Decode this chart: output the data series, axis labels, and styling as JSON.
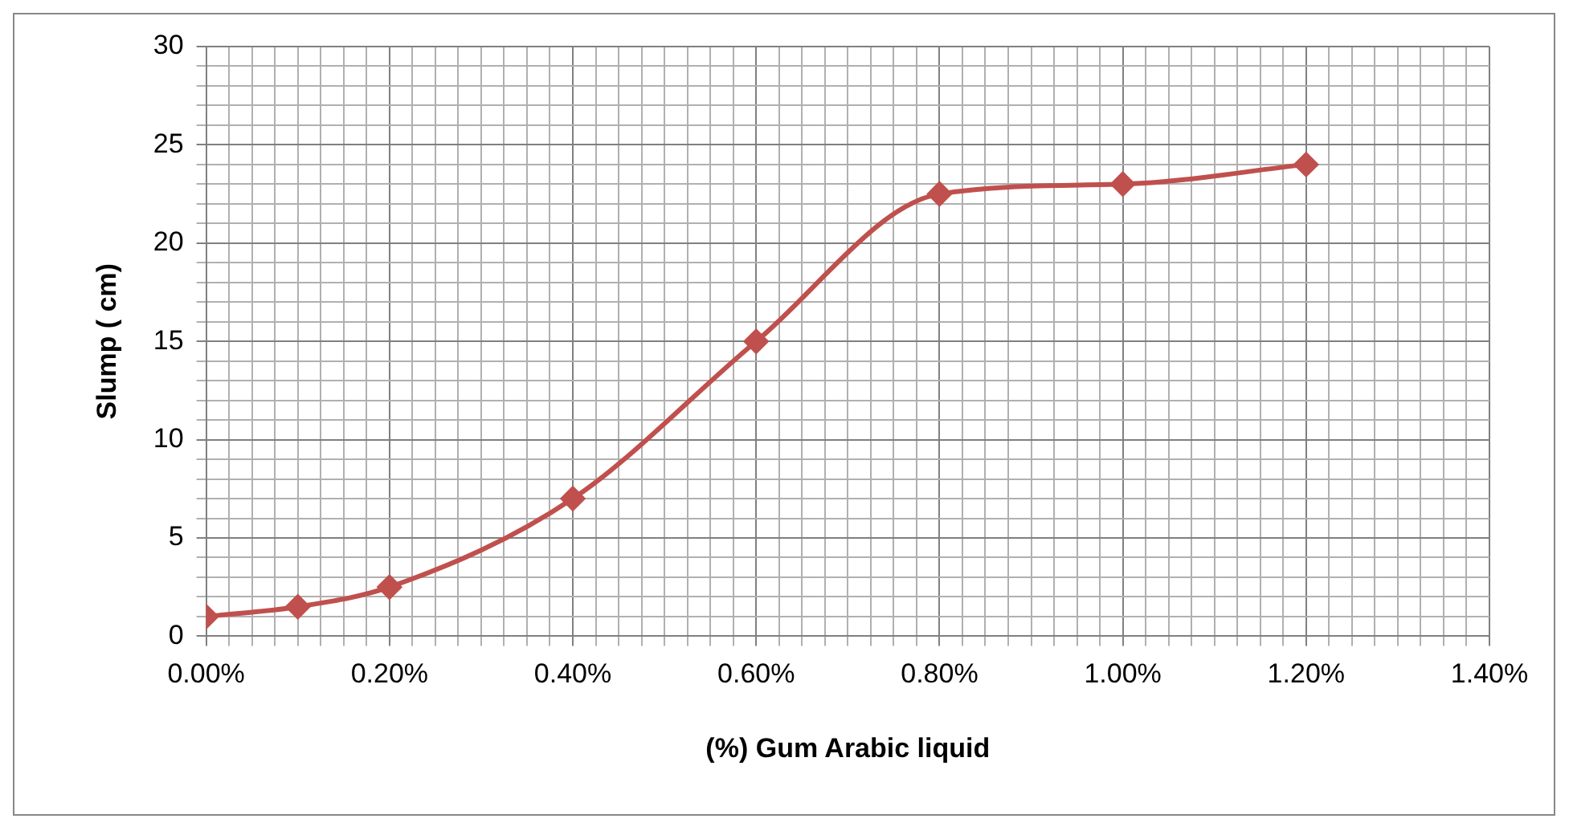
{
  "chart_data": {
    "type": "line",
    "xlabel": "(%) Gum Arabic liquid",
    "ylabel": "Slump ( cm)",
    "x": [
      0,
      0.1,
      0.2,
      0.4,
      0.6,
      0.8,
      1.0,
      1.2
    ],
    "series": [
      {
        "color": "#c0504d",
        "values": [
          1,
          1.5,
          2.5,
          7,
          15,
          22.5,
          23,
          24
        ]
      }
    ],
    "xlim": [
      0,
      1.4
    ],
    "ylim": [
      0,
      30
    ],
    "xticks": [
      {
        "value": 0,
        "label": "0.00%"
      },
      {
        "value": 0.025,
        "label": null
      },
      {
        "value": 0.05,
        "label": null
      },
      {
        "value": 0.075,
        "label": null
      },
      {
        "value": 0.1,
        "label": null
      },
      {
        "value": 0.125,
        "label": null
      },
      {
        "value": 0.15,
        "label": null
      },
      {
        "value": 0.175,
        "label": null
      },
      {
        "value": 0.2,
        "label": "0.20%"
      },
      {
        "value": 0.225,
        "label": null
      },
      {
        "value": 0.25,
        "label": null
      },
      {
        "value": 0.275,
        "label": null
      },
      {
        "value": 0.3,
        "label": null
      },
      {
        "value": 0.325,
        "label": null
      },
      {
        "value": 0.35,
        "label": null
      },
      {
        "value": 0.375,
        "label": null
      },
      {
        "value": 0.4,
        "label": "0.40%"
      },
      {
        "value": 0.425,
        "label": null
      },
      {
        "value": 0.45,
        "label": null
      },
      {
        "value": 0.475,
        "label": null
      },
      {
        "value": 0.5,
        "label": null
      },
      {
        "value": 0.525,
        "label": null
      },
      {
        "value": 0.55,
        "label": null
      },
      {
        "value": 0.575,
        "label": null
      },
      {
        "value": 0.6,
        "label": "0.60%"
      },
      {
        "value": 0.625,
        "label": null
      },
      {
        "value": 0.65,
        "label": null
      },
      {
        "value": 0.675,
        "label": null
      },
      {
        "value": 0.7,
        "label": null
      },
      {
        "value": 0.725,
        "label": null
      },
      {
        "value": 0.75,
        "label": null
      },
      {
        "value": 0.775,
        "label": null
      },
      {
        "value": 0.8,
        "label": "0.80%"
      },
      {
        "value": 0.825,
        "label": null
      },
      {
        "value": 0.85,
        "label": null
      },
      {
        "value": 0.875,
        "label": null
      },
      {
        "value": 0.9,
        "label": null
      },
      {
        "value": 0.925,
        "label": null
      },
      {
        "value": 0.95,
        "label": null
      },
      {
        "value": 0.975,
        "label": null
      },
      {
        "value": 1.0,
        "label": "1.00%"
      },
      {
        "value": 1.025,
        "label": null
      },
      {
        "value": 1.05,
        "label": null
      },
      {
        "value": 1.075,
        "label": null
      },
      {
        "value": 1.1,
        "label": null
      },
      {
        "value": 1.125,
        "label": null
      },
      {
        "value": 1.15,
        "label": null
      },
      {
        "value": 1.175,
        "label": null
      },
      {
        "value": 1.2,
        "label": "1.20%"
      },
      {
        "value": 1.225,
        "label": null
      },
      {
        "value": 1.25,
        "label": null
      },
      {
        "value": 1.275,
        "label": null
      },
      {
        "value": 1.3,
        "label": null
      },
      {
        "value": 1.325,
        "label": null
      },
      {
        "value": 1.35,
        "label": null
      },
      {
        "value": 1.375,
        "label": null
      },
      {
        "value": 1.4,
        "label": "1.40%"
      }
    ],
    "yticks": [
      0,
      {
        "value": 1,
        "label": null
      },
      {
        "value": 2,
        "label": null
      },
      {
        "value": 3,
        "label": null
      },
      {
        "value": 4,
        "label": null
      },
      5,
      {
        "value": 6,
        "label": null
      },
      {
        "value": 7,
        "label": null
      },
      {
        "value": 8,
        "label": null
      },
      {
        "value": 9,
        "label": null
      },
      10,
      {
        "value": 11,
        "label": null
      },
      {
        "value": 12,
        "label": null
      },
      {
        "value": 13,
        "label": null
      },
      {
        "value": 14,
        "label": null
      },
      15,
      {
        "value": 16,
        "label": null
      },
      {
        "value": 17,
        "label": null
      },
      {
        "value": 18,
        "label": null
      },
      {
        "value": 19,
        "label": null
      },
      20,
      {
        "value": 21,
        "label": null
      },
      {
        "value": 22,
        "label": null
      },
      {
        "value": 23,
        "label": null
      },
      {
        "value": 24,
        "label": null
      },
      25,
      {
        "value": 26,
        "label": null
      },
      {
        "value": 27,
        "label": null
      },
      {
        "value": 28,
        "label": null
      },
      {
        "value": 29,
        "label": null
      },
      30
    ],
    "grid": true,
    "marker": "diamond",
    "line_style": "solid"
  }
}
